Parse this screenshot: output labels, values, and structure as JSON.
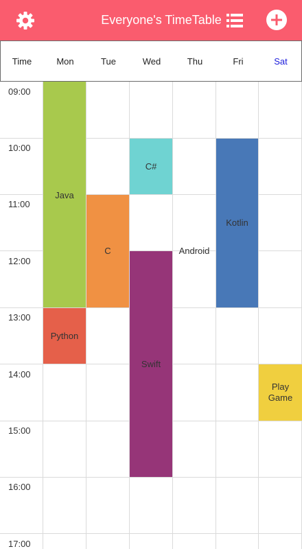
{
  "appbar": {
    "title": "Everyone's TimeTable",
    "background": "#fa5c6e",
    "left_icon": "gear-icon",
    "right_icons": [
      "list-icon",
      "add-circle-icon"
    ]
  },
  "days": {
    "time": "Time",
    "mon": "Mon",
    "tue": "Tue",
    "wed": "Wed",
    "thu": "Thu",
    "fri": "Fri",
    "sat": "Sat",
    "sat_color": "#1a1adb"
  },
  "hours": [
    "09:00",
    "10:00",
    "11:00",
    "12:00",
    "13:00",
    "14:00",
    "15:00",
    "16:00",
    "17:00"
  ],
  "courses": {
    "java": {
      "name": "Java",
      "day": "Mon",
      "start": "09:00",
      "end": "13:00",
      "color": "#a8c94d"
    },
    "python": {
      "name": "Python",
      "day": "Mon",
      "start": "13:00",
      "end": "14:00",
      "color": "#e5604a"
    },
    "c": {
      "name": "C",
      "day": "Tue",
      "start": "11:00",
      "end": "13:00",
      "color": "#f09143"
    },
    "csharp": {
      "name": "C#",
      "day": "Wed",
      "start": "10:00",
      "end": "11:00",
      "color": "#6fd3d2"
    },
    "swift": {
      "name": "Swift",
      "day": "Wed",
      "start": "12:00",
      "end": "16:00",
      "color": "#963578"
    },
    "android": {
      "name": "Android",
      "day": "Thu",
      "start": "11:30",
      "end": "12:30",
      "color": "#ffffff"
    },
    "kotlin": {
      "name": "Kotlin",
      "day": "Fri",
      "start": "10:00",
      "end": "13:00",
      "color": "#4878b7"
    },
    "playgame": {
      "name": "Play\nGame",
      "day": "Sat",
      "start": "14:00",
      "end": "15:00",
      "color": "#f0cf3f"
    }
  }
}
